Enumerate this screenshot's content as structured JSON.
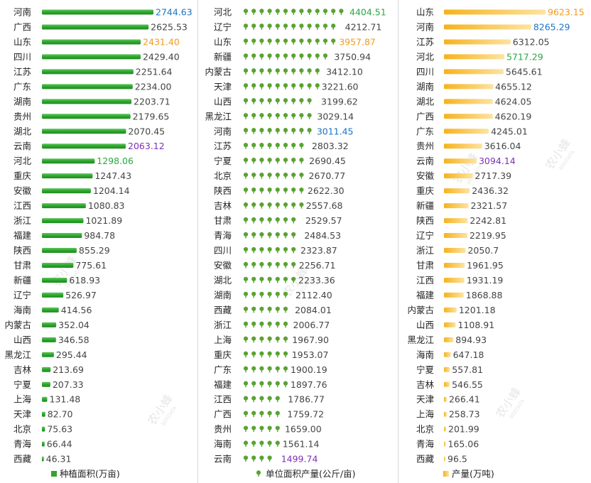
{
  "colors": {
    "green_bar": "#2ea52e",
    "tree_icon": "#5aa332",
    "orange_bar": "#f6b21c",
    "value_default": "#444444",
    "highlight_blue": "#1a73c8",
    "highlight_orange": "#f29a1a",
    "highlight_green": "#28a745",
    "highlight_purple": "#7b2fb8"
  },
  "watermark": {
    "text": "农小蜂",
    "sub": "BEEDATA"
  },
  "chart_data": [
    {
      "type": "bar",
      "orientation": "horizontal",
      "legend": "种植面积(万亩)",
      "legend_position": "bottom",
      "icon": "green-bar-icon",
      "categories": [
        "河南",
        "广西",
        "山东",
        "四川",
        "江苏",
        "广东",
        "湖南",
        "贵州",
        "湖北",
        "云南",
        "河北",
        "重庆",
        "安徽",
        "江西",
        "浙江",
        "福建",
        "陕西",
        "甘肃",
        "新疆",
        "辽宁",
        "海南",
        "内蒙古",
        "山西",
        "黑龙江",
        "吉林",
        "宁夏",
        "上海",
        "天津",
        "北京",
        "青海",
        "西藏"
      ],
      "values": [
        2744.63,
        2625.53,
        2431.4,
        2429.4,
        2251.64,
        2234.0,
        2203.71,
        2179.65,
        2070.45,
        2063.12,
        1298.06,
        1247.43,
        1204.14,
        1080.83,
        1021.89,
        984.78,
        855.29,
        775.61,
        618.93,
        526.97,
        414.56,
        352.04,
        346.58,
        295.44,
        213.69,
        207.33,
        131.48,
        82.7,
        75.63,
        66.44,
        46.31
      ],
      "labels": [
        "2744.63",
        "2625.53",
        "2431.40",
        "2429.40",
        "2251.64",
        "2234.00",
        "2203.71",
        "2179.65",
        "2070.45",
        "2063.12",
        "1298.06",
        "1247.43",
        "1204.14",
        "1080.83",
        "1021.89",
        "984.78",
        "855.29",
        "775.61",
        "618.93",
        "526.97",
        "414.56",
        "352.04",
        "346.58",
        "295.44",
        "213.69",
        "207.33",
        "131.48",
        "82.70",
        "75.63",
        "66.44",
        "46.31"
      ],
      "highlights": {
        "0": "blue",
        "2": "orange",
        "9": "purple",
        "10": "green"
      },
      "xlim": [
        0,
        2744.63
      ]
    },
    {
      "type": "bar",
      "orientation": "horizontal",
      "style": "pictogram",
      "legend": "单位面积产量(公斤/亩)",
      "legend_position": "bottom",
      "icon": "tree-icon",
      "categories": [
        "河北",
        "辽宁",
        "山东",
        "新疆",
        "内蒙古",
        "天津",
        "山西",
        "黑龙江",
        "河南",
        "江苏",
        "宁夏",
        "北京",
        "陕西",
        "吉林",
        "甘肃",
        "青海",
        "四川",
        "安徽",
        "湖北",
        "湖南",
        "西藏",
        "浙江",
        "上海",
        "重庆",
        "广东",
        "福建",
        "江西",
        "广西",
        "贵州",
        "海南",
        "云南"
      ],
      "values": [
        4404.51,
        4212.71,
        3957.87,
        3750.94,
        3412.1,
        3221.6,
        3199.62,
        3029.14,
        3011.45,
        2803.32,
        2690.45,
        2670.77,
        2622.3,
        2557.68,
        2529.57,
        2484.53,
        2323.87,
        2256.71,
        2233.36,
        2112.4,
        2084.01,
        2006.77,
        1967.9,
        1953.07,
        1900.19,
        1897.76,
        1786.77,
        1759.72,
        1659.0,
        1561.14,
        1499.74
      ],
      "labels": [
        "4404.51",
        "4212.71",
        "3957.87",
        "3750.94",
        "3412.10",
        "3221.60",
        "3199.62",
        "3029.14",
        "3011.45",
        "2803.32",
        "2690.45",
        "2670.77",
        "2622.30",
        "2557.68",
        "2529.57",
        "2484.53",
        "2323.87",
        "2256.71",
        "2233.36",
        "2112.40",
        "2084.01",
        "2006.77",
        "1967.90",
        "1953.07",
        "1900.19",
        "1897.76",
        "1786.77",
        "1759.72",
        "1659.00",
        "1561.14",
        "1499.74"
      ],
      "highlights": {
        "0": "green",
        "2": "orange",
        "8": "blue",
        "30": "purple"
      },
      "xlim": [
        0,
        4404.51
      ]
    },
    {
      "type": "bar",
      "orientation": "horizontal",
      "legend": "产量(万吨)",
      "legend_position": "bottom",
      "icon": "orange-gradient-bar-icon",
      "categories": [
        "山东",
        "河南",
        "江苏",
        "河北",
        "四川",
        "湖南",
        "湖北",
        "广西",
        "广东",
        "贵州",
        "云南",
        "安徽",
        "重庆",
        "新疆",
        "陕西",
        "辽宁",
        "浙江",
        "甘肃",
        "江西",
        "福建",
        "内蒙古",
        "山西",
        "黑龙江",
        "海南",
        "宁夏",
        "吉林",
        "天津",
        "上海",
        "北京",
        "青海",
        "西藏"
      ],
      "values": [
        9623.15,
        8265.29,
        6312.05,
        5717.29,
        5645.61,
        4655.12,
        4624.05,
        4620.19,
        4245.01,
        3616.04,
        3094.14,
        2717.39,
        2436.32,
        2321.57,
        2242.81,
        2219.95,
        2050.7,
        1961.95,
        1931.19,
        1868.88,
        1201.18,
        1108.91,
        894.93,
        647.18,
        557.81,
        546.55,
        266.41,
        258.73,
        201.99,
        165.06,
        96.5
      ],
      "labels": [
        "9623.15",
        "8265.29",
        "6312.05",
        "5717.29",
        "5645.61",
        "4655.12",
        "4624.05",
        "4620.19",
        "4245.01",
        "3616.04",
        "3094.14",
        "2717.39",
        "2436.32",
        "2321.57",
        "2242.81",
        "2219.95",
        "2050.7",
        "1961.95",
        "1931.19",
        "1868.88",
        "1201.18",
        "1108.91",
        "894.93",
        "647.18",
        "557.81",
        "546.55",
        "266.41",
        "258.73",
        "201.99",
        "165.06",
        "96.5"
      ],
      "highlights": {
        "0": "orange",
        "1": "blue",
        "3": "green",
        "10": "purple"
      },
      "xlim": [
        0,
        9623.15
      ]
    }
  ]
}
